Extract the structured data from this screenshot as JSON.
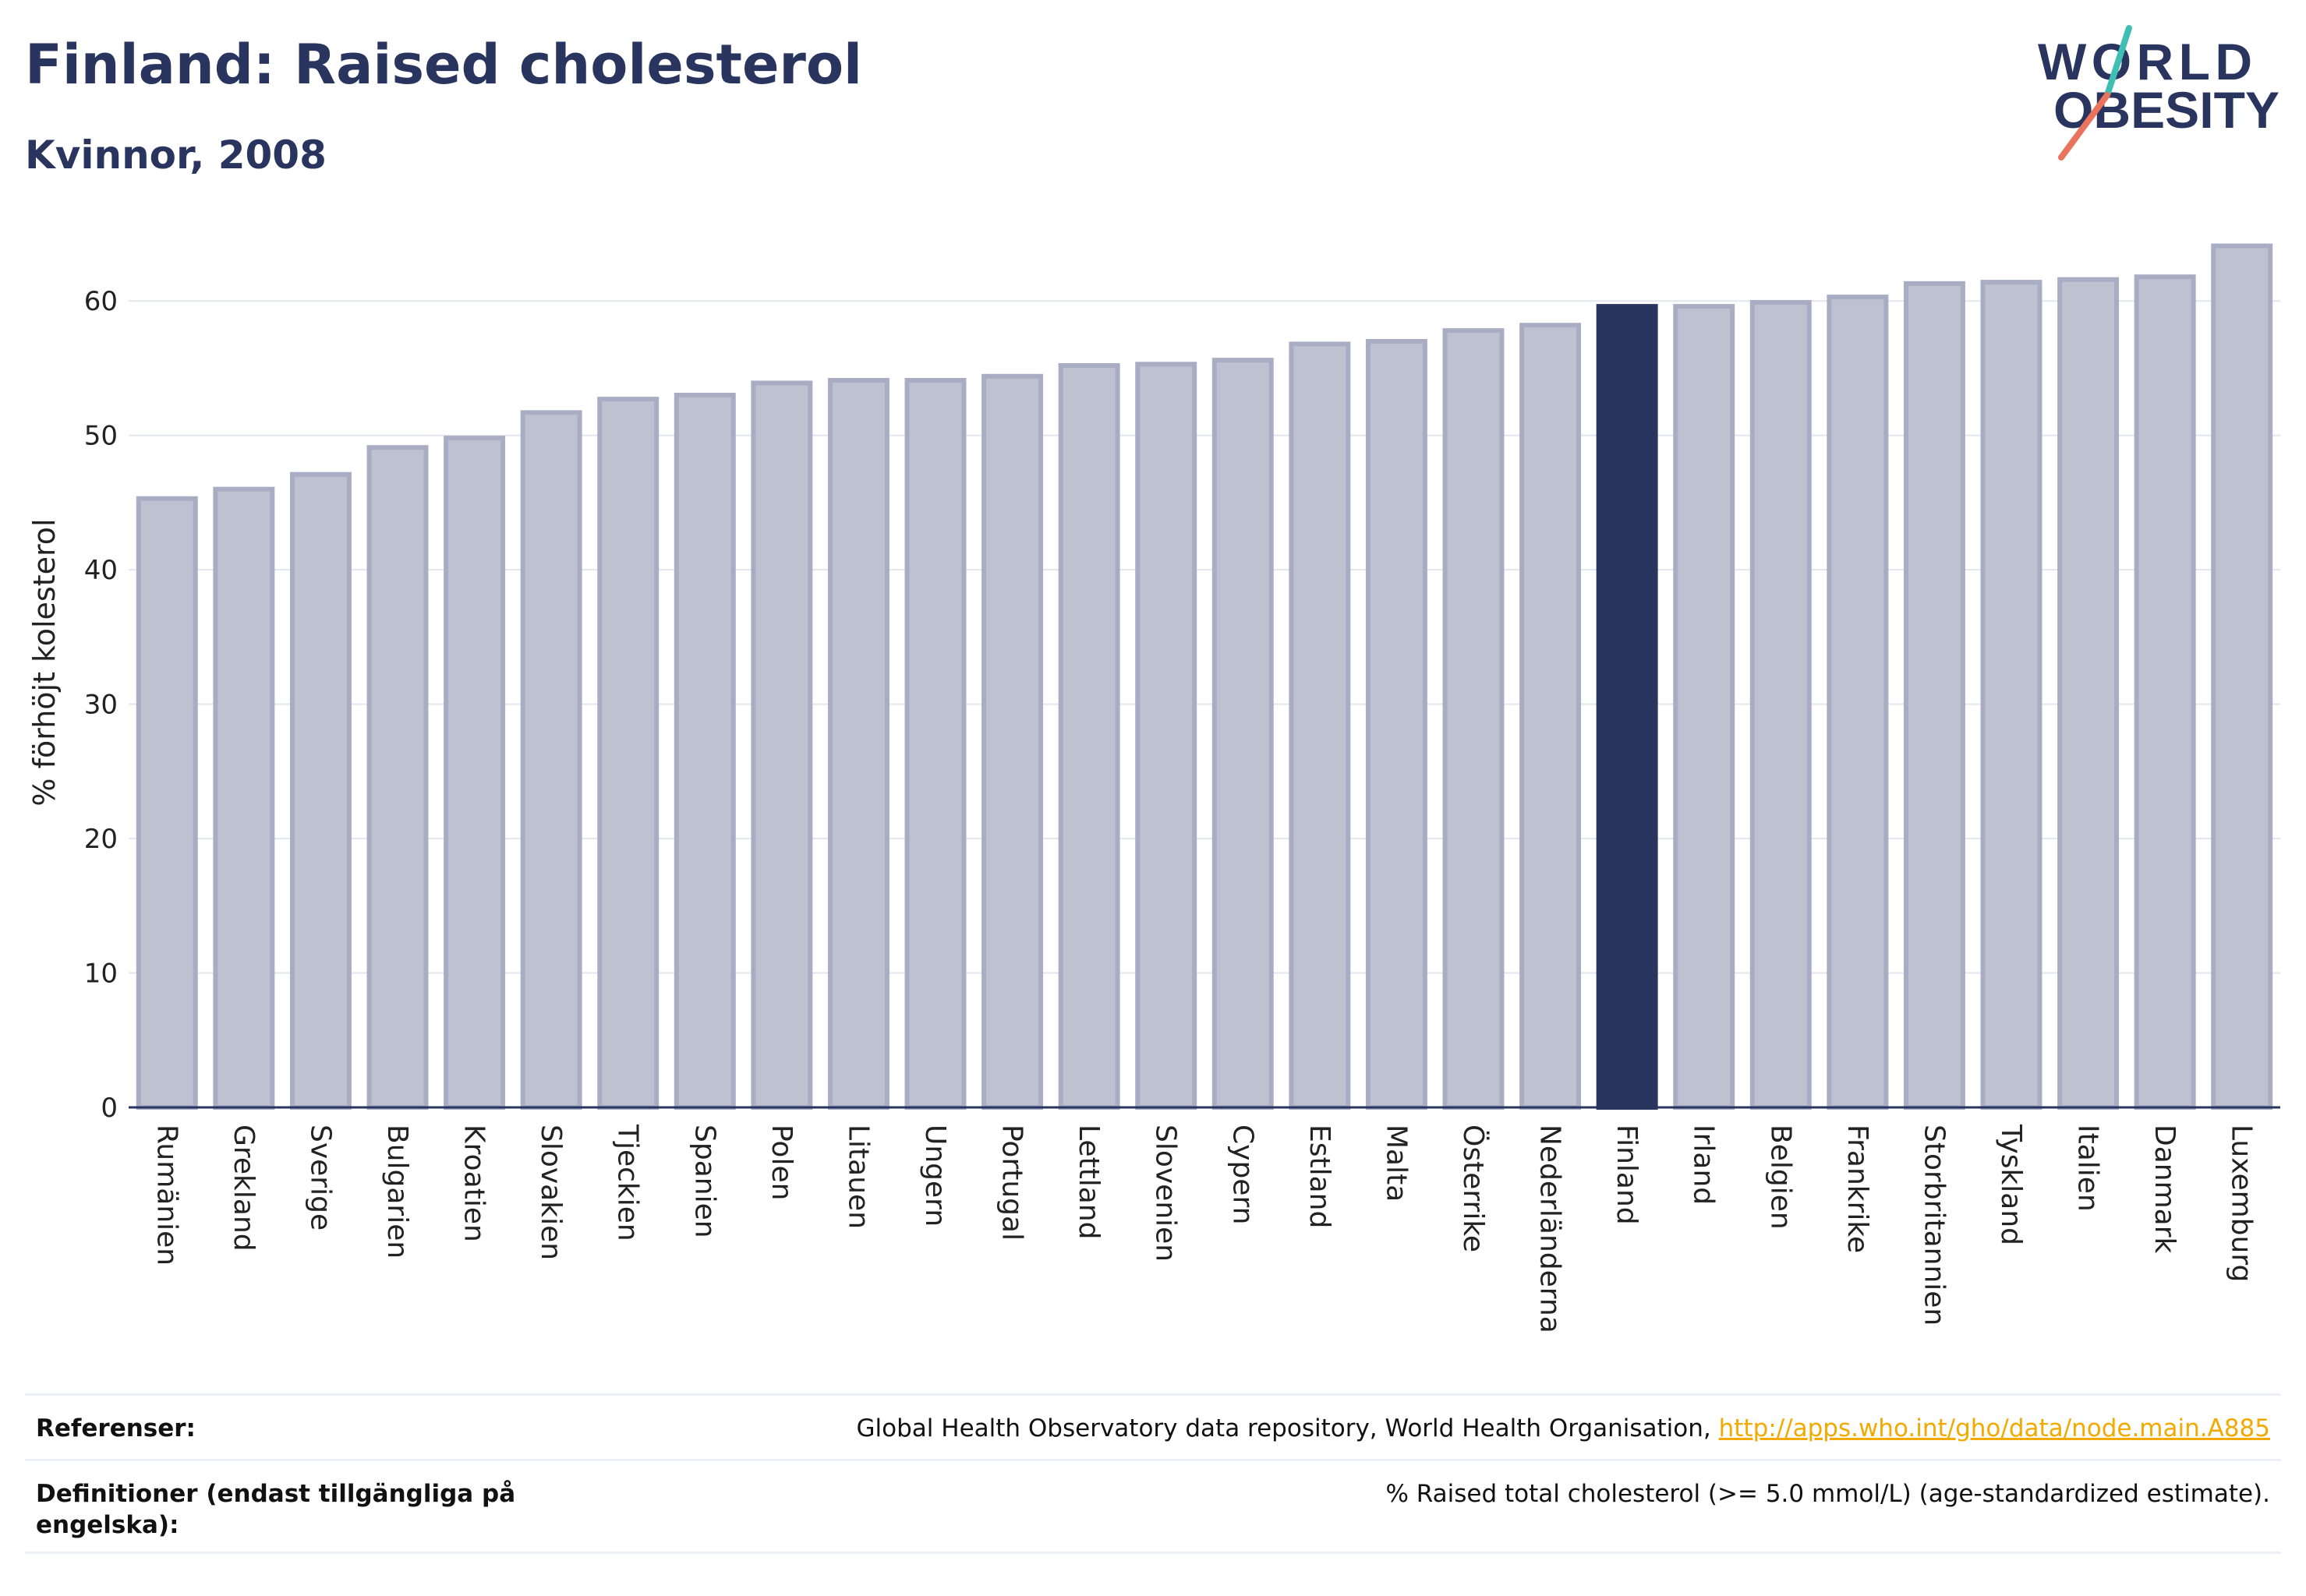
{
  "header": {
    "title": "Finland: Raised cholesterol",
    "subtitle": "Kvinnor, 2008"
  },
  "logo": {
    "line1": "WORLD",
    "line2": "OBESITY"
  },
  "chart_data": {
    "type": "bar",
    "title": "Finland: Raised cholesterol",
    "subtitle": "Kvinnor, 2008",
    "ylabel": "% förhöjt kolesterol",
    "xlabel": "",
    "ylim": [
      0,
      65
    ],
    "yticks": [
      0,
      10,
      20,
      30,
      40,
      50,
      60
    ],
    "grid": true,
    "highlight": "Finland",
    "colors": {
      "bar": "#bec1cf",
      "bar_border": "#a8adc4",
      "highlight": "#2a355f",
      "axis": "#2a355f",
      "grid": "#e4e6ee"
    },
    "categories": [
      "Rumänien",
      "Grekland",
      "Sverige",
      "Bulgarien",
      "Kroatien",
      "Slovakien",
      "Tjeckien",
      "Spanien",
      "Polen",
      "Litauen",
      "Ungern",
      "Portugal",
      "Lettland",
      "Slovenien",
      "Cypern",
      "Estland",
      "Malta",
      "Österrike",
      "Nederländerna",
      "Finland",
      "Irland",
      "Belgien",
      "Frankrike",
      "Storbritannien",
      "Tyskland",
      "Italien",
      "Danmark",
      "Luxemburg"
    ],
    "values": [
      45.3,
      46.0,
      47.1,
      49.1,
      49.8,
      51.7,
      52.7,
      53.0,
      53.9,
      54.1,
      54.1,
      54.4,
      55.2,
      55.3,
      55.6,
      56.8,
      57.0,
      57.8,
      58.2,
      59.6,
      59.6,
      59.9,
      60.3,
      61.3,
      61.4,
      61.6,
      61.8,
      64.1
    ]
  },
  "footer": {
    "references_label": "Referenser:",
    "references_text": "Global Health Observatory data repository, World Health Organisation, ",
    "references_link": "http://apps.who.int/gho/data/node.main.A885",
    "definitions_label": "Definitioner (endast tillgängliga på engelska):",
    "definitions_text": "% Raised total cholesterol (>= 5.0 mmol/L) (age-standardized estimate)."
  }
}
